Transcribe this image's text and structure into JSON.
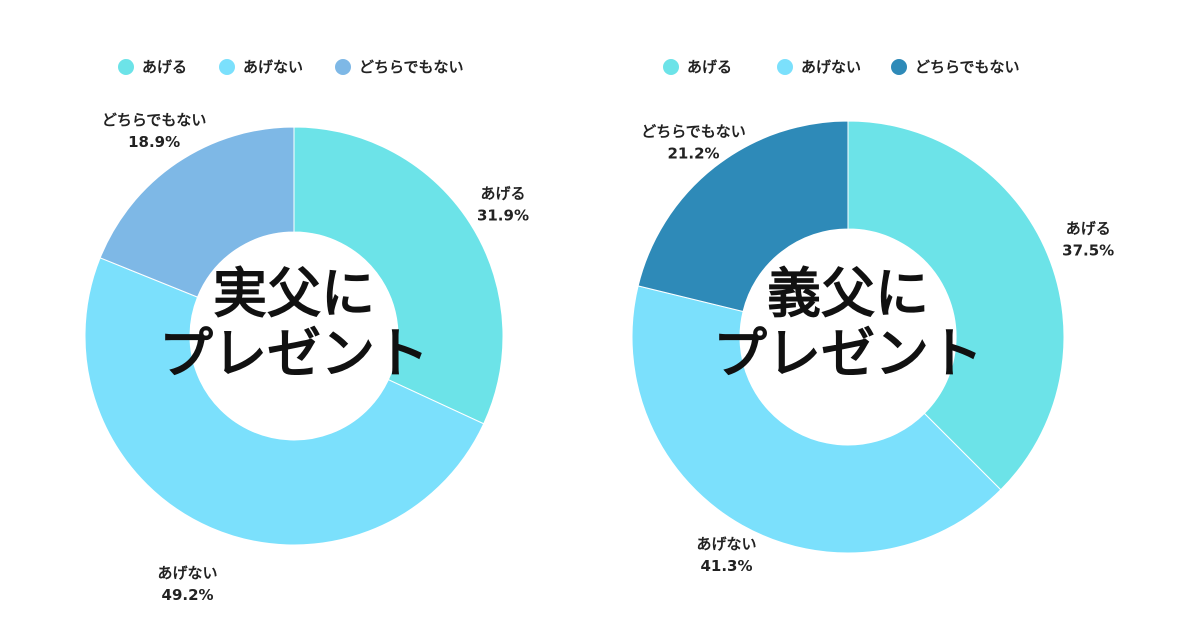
{
  "chart_data": [
    {
      "type": "donut",
      "center_label_lines": [
        "実父に",
        "プレゼント"
      ],
      "legend": [
        {
          "label": "あげる",
          "color": "#6ce3e8"
        },
        {
          "label": "あげない",
          "color": "#7be0fc"
        },
        {
          "label": "どちらでもない",
          "color": "#7eb8e6"
        }
      ],
      "slices": [
        {
          "label": "あげる",
          "value": 31.9,
          "value_text": "31.9%",
          "color": "#6ce3e8"
        },
        {
          "label": "あげない",
          "value": 49.2,
          "value_text": "49.2%",
          "color": "#7be0fc"
        },
        {
          "label": "どちらでもない",
          "value": 18.9,
          "value_text": "18.9%",
          "color": "#7eb8e6"
        }
      ]
    },
    {
      "type": "donut",
      "center_label_lines": [
        "義父に",
        "プレゼント"
      ],
      "legend": [
        {
          "label": "あげる",
          "color": "#6ce3e8"
        },
        {
          "label": "あげない",
          "color": "#7be0fc"
        },
        {
          "label": "どちらでもない",
          "color": "#2e8ab8"
        }
      ],
      "slices": [
        {
          "label": "あげる",
          "value": 37.5,
          "value_text": "37.5%",
          "color": "#6ce3e8"
        },
        {
          "label": "あげない",
          "value": 41.3,
          "value_text": "41.3%",
          "color": "#7be0fc"
        },
        {
          "label": "どちらでもない",
          "value": 21.2,
          "value_text": "21.2%",
          "color": "#2e8ab8"
        }
      ]
    }
  ]
}
